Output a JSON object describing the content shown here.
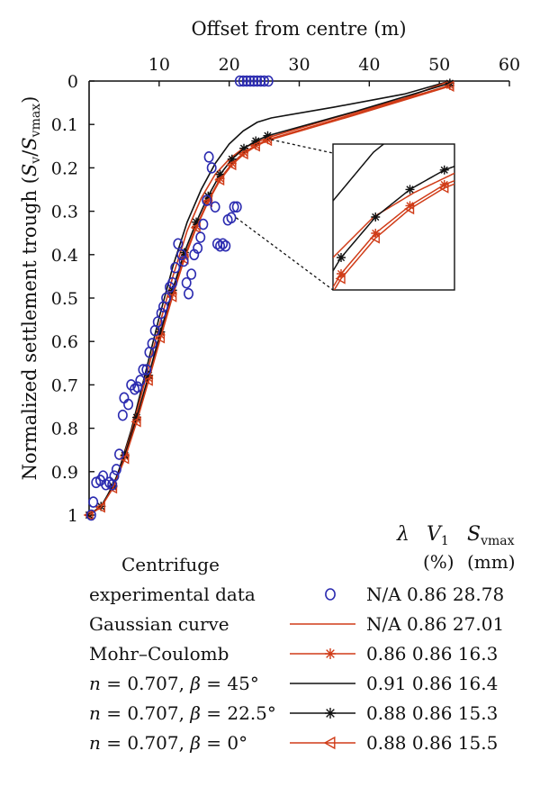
{
  "chart_data": {
    "type": "line",
    "xlabel": "Offset from centre (m)",
    "ylabel_main": "Normalized settlement trough (",
    "ylabel_s": "S",
    "ylabel_v": "v",
    "ylabel_slash": "/",
    "ylabel_vmax": "vmax",
    "ylabel_close": ")",
    "x_axis": {
      "position": "top",
      "range": [
        0,
        60
      ],
      "ticks": [
        10,
        20,
        30,
        40,
        50,
        60
      ]
    },
    "y_axis": {
      "inverted": true,
      "range": [
        0,
        1
      ],
      "ticks": [
        "0",
        "0.1",
        "0.2",
        "0.3",
        "0.4",
        "0.5",
        "0.6",
        "0.7",
        "0.8",
        "0.9",
        "1"
      ]
    },
    "legend_header": {
      "lambda": "λ",
      "v1": "V",
      "v1_sub": "1",
      "v1_unit": "(%)",
      "svmax": "S",
      "svmax_sub": "vmax",
      "svmax_unit": "(mm)"
    },
    "series": [
      {
        "name": "Centrifuge experimental data",
        "name_line1": "Centrifuge",
        "name_line2": "experimental data",
        "lambda": "N/A",
        "v1": "0.86",
        "svmax": "28.78",
        "color": "#2b2bb0",
        "marker": "circle",
        "line": false,
        "points": [
          [
            0.3,
            1.0
          ],
          [
            0.6,
            0.97
          ],
          [
            1.0,
            0.925
          ],
          [
            1.6,
            0.92
          ],
          [
            2.0,
            0.91
          ],
          [
            2.4,
            0.93
          ],
          [
            2.9,
            0.925
          ],
          [
            3.3,
            0.93
          ],
          [
            3.6,
            0.91
          ],
          [
            3.9,
            0.895
          ],
          [
            4.3,
            0.86
          ],
          [
            4.8,
            0.77
          ],
          [
            5.0,
            0.73
          ],
          [
            5.6,
            0.745
          ],
          [
            6.0,
            0.7
          ],
          [
            6.5,
            0.71
          ],
          [
            6.9,
            0.705
          ],
          [
            7.3,
            0.69
          ],
          [
            7.7,
            0.665
          ],
          [
            8.2,
            0.665
          ],
          [
            8.6,
            0.625
          ],
          [
            9.0,
            0.605
          ],
          [
            9.4,
            0.575
          ],
          [
            9.8,
            0.555
          ],
          [
            10.3,
            0.535
          ],
          [
            10.6,
            0.52
          ],
          [
            11.0,
            0.5
          ],
          [
            11.5,
            0.475
          ],
          [
            11.9,
            0.465
          ],
          [
            12.3,
            0.43
          ],
          [
            12.7,
            0.375
          ],
          [
            13.2,
            0.4
          ],
          [
            13.5,
            0.415
          ],
          [
            13.9,
            0.465
          ],
          [
            14.2,
            0.49
          ],
          [
            14.6,
            0.445
          ],
          [
            15.0,
            0.4
          ],
          [
            15.5,
            0.385
          ],
          [
            15.9,
            0.36
          ],
          [
            16.3,
            0.33
          ],
          [
            16.8,
            0.275
          ],
          [
            17.1,
            0.175
          ],
          [
            17.5,
            0.2
          ],
          [
            18.0,
            0.29
          ],
          [
            18.3,
            0.375
          ],
          [
            18.7,
            0.38
          ],
          [
            19.1,
            0.375
          ],
          [
            19.5,
            0.38
          ],
          [
            19.8,
            0.32
          ],
          [
            20.3,
            0.315
          ],
          [
            20.7,
            0.29
          ],
          [
            21.1,
            0.29
          ],
          [
            21.5,
            0.0
          ],
          [
            22.0,
            0.0
          ],
          [
            22.5,
            0.0
          ],
          [
            23.0,
            0.0
          ],
          [
            23.5,
            0.0
          ],
          [
            24.0,
            0.0
          ],
          [
            24.5,
            0.0
          ],
          [
            25.0,
            0.0
          ],
          [
            25.6,
            0.0
          ]
        ]
      },
      {
        "name": "Gaussian curve",
        "lambda": "N/A",
        "v1": "0.86",
        "svmax": "27.01",
        "color": "#d03c18",
        "marker": "none",
        "line": true,
        "points": [
          [
            0,
            1.0
          ],
          [
            2,
            0.975
          ],
          [
            4,
            0.912
          ],
          [
            6,
            0.812
          ],
          [
            8,
            0.69
          ],
          [
            10,
            0.565
          ],
          [
            12,
            0.448
          ],
          [
            14,
            0.345
          ],
          [
            16,
            0.27
          ],
          [
            18,
            0.215
          ],
          [
            20,
            0.18
          ],
          [
            22,
            0.155
          ],
          [
            24,
            0.14
          ],
          [
            26,
            0.128
          ],
          [
            35,
            0.085
          ],
          [
            45,
            0.04
          ],
          [
            51.5,
            0.0
          ]
        ]
      },
      {
        "name": "Mohr–Coulomb",
        "lambda": "0.86",
        "v1": "0.86",
        "svmax": "16.3",
        "color": "#d03c18",
        "marker": "star",
        "line": true,
        "points": [
          [
            0,
            1.0
          ],
          [
            1.7,
            0.98
          ],
          [
            3.4,
            0.935
          ],
          [
            5.1,
            0.865
          ],
          [
            6.8,
            0.78
          ],
          [
            8.5,
            0.685
          ],
          [
            10.2,
            0.585
          ],
          [
            11.9,
            0.49
          ],
          [
            13.6,
            0.405
          ],
          [
            15.3,
            0.335
          ],
          [
            17.0,
            0.275
          ],
          [
            18.7,
            0.225
          ],
          [
            20.4,
            0.19
          ],
          [
            22.1,
            0.165
          ],
          [
            23.8,
            0.148
          ],
          [
            25.5,
            0.135
          ],
          [
            38,
            0.075
          ],
          [
            51.5,
            0.01
          ]
        ],
        "marker_points": [
          [
            0,
            1.0
          ],
          [
            1.7,
            0.98
          ],
          [
            3.4,
            0.935
          ],
          [
            5.1,
            0.865
          ],
          [
            6.8,
            0.78
          ],
          [
            8.5,
            0.685
          ],
          [
            10.2,
            0.585
          ],
          [
            11.9,
            0.49
          ],
          [
            13.6,
            0.405
          ],
          [
            15.3,
            0.335
          ],
          [
            17.0,
            0.275
          ],
          [
            18.7,
            0.225
          ],
          [
            20.4,
            0.19
          ],
          [
            22.1,
            0.165
          ],
          [
            23.8,
            0.148
          ],
          [
            25.5,
            0.135
          ],
          [
            51.5,
            0.01
          ]
        ]
      },
      {
        "name": "n = 0.707, β = 45°",
        "lambda": "0.91",
        "v1": "0.86",
        "svmax": "16.4",
        "color": "#111111",
        "marker": "none",
        "line": true,
        "points": [
          [
            0,
            1.0
          ],
          [
            2,
            0.975
          ],
          [
            4,
            0.91
          ],
          [
            6,
            0.805
          ],
          [
            8,
            0.675
          ],
          [
            10,
            0.545
          ],
          [
            12,
            0.425
          ],
          [
            14,
            0.325
          ],
          [
            16,
            0.25
          ],
          [
            18,
            0.19
          ],
          [
            20,
            0.145
          ],
          [
            22,
            0.115
          ],
          [
            24,
            0.095
          ],
          [
            26,
            0.085
          ],
          [
            35,
            0.06
          ],
          [
            45,
            0.03
          ],
          [
            51.5,
            0.0
          ]
        ]
      },
      {
        "name": "n = 0.707, β = 22.5°",
        "lambda": "0.88",
        "v1": "0.86",
        "svmax": "15.3",
        "color": "#111111",
        "marker": "star",
        "line": true,
        "points": [
          [
            0,
            1.0
          ],
          [
            1.7,
            0.98
          ],
          [
            3.4,
            0.933
          ],
          [
            5.1,
            0.862
          ],
          [
            6.8,
            0.775
          ],
          [
            8.5,
            0.678
          ],
          [
            10.2,
            0.578
          ],
          [
            11.9,
            0.482
          ],
          [
            13.6,
            0.395
          ],
          [
            15.3,
            0.325
          ],
          [
            17.0,
            0.265
          ],
          [
            18.7,
            0.215
          ],
          [
            20.4,
            0.18
          ],
          [
            22.1,
            0.155
          ],
          [
            23.8,
            0.138
          ],
          [
            25.5,
            0.126
          ],
          [
            38,
            0.07
          ],
          [
            51.5,
            0.005
          ]
        ],
        "marker_points": [
          [
            0,
            1.0
          ],
          [
            1.7,
            0.98
          ],
          [
            3.4,
            0.933
          ],
          [
            5.1,
            0.862
          ],
          [
            6.8,
            0.775
          ],
          [
            8.5,
            0.678
          ],
          [
            10.2,
            0.578
          ],
          [
            11.9,
            0.482
          ],
          [
            13.6,
            0.395
          ],
          [
            15.3,
            0.325
          ],
          [
            17.0,
            0.265
          ],
          [
            18.7,
            0.215
          ],
          [
            20.4,
            0.18
          ],
          [
            22.1,
            0.155
          ],
          [
            23.8,
            0.138
          ],
          [
            25.5,
            0.126
          ],
          [
            51.5,
            0.005
          ]
        ]
      },
      {
        "name": "n = 0.707, β = 0°",
        "lambda": "0.88",
        "v1": "0.86",
        "svmax": "15.5",
        "color": "#d03c18",
        "marker": "triangle-left",
        "line": true,
        "points": [
          [
            0,
            1.0
          ],
          [
            1.7,
            0.982
          ],
          [
            3.4,
            0.938
          ],
          [
            5.1,
            0.87
          ],
          [
            6.8,
            0.785
          ],
          [
            8.5,
            0.69
          ],
          [
            10.2,
            0.592
          ],
          [
            11.9,
            0.497
          ],
          [
            13.6,
            0.41
          ],
          [
            15.3,
            0.338
          ],
          [
            17.0,
            0.278
          ],
          [
            18.7,
            0.228
          ],
          [
            20.4,
            0.193
          ],
          [
            22.1,
            0.168
          ],
          [
            23.8,
            0.15
          ],
          [
            25.5,
            0.137
          ],
          [
            38,
            0.078
          ],
          [
            51.5,
            0.012
          ]
        ],
        "marker_points": [
          [
            0,
            1.0
          ],
          [
            1.7,
            0.982
          ],
          [
            3.4,
            0.938
          ],
          [
            5.1,
            0.87
          ],
          [
            6.8,
            0.785
          ],
          [
            8.5,
            0.69
          ],
          [
            10.2,
            0.592
          ],
          [
            11.9,
            0.497
          ],
          [
            13.6,
            0.41
          ],
          [
            15.3,
            0.338
          ],
          [
            17.0,
            0.278
          ],
          [
            18.7,
            0.228
          ],
          [
            20.4,
            0.193
          ],
          [
            22.1,
            0.168
          ],
          [
            23.8,
            0.15
          ],
          [
            25.5,
            0.137
          ],
          [
            51.5,
            0.012
          ]
        ]
      }
    ],
    "inset": {
      "zoom_x": [
        20,
        26
      ],
      "zoom_y": [
        0.11,
        0.2
      ]
    }
  },
  "legend_texts": {
    "row4_pre": "n",
    "row4_mid": " = 0.707, ",
    "row4_beta": "β",
    "row4_post": " = 45°",
    "row5_pre": "n",
    "row5_mid": " = 0.707, ",
    "row5_beta": "β",
    "row5_post": " = 22.5°",
    "row6_pre": "n",
    "row6_mid": " = 0.707, ",
    "row6_beta": "β",
    "row6_post": " = 0°"
  }
}
